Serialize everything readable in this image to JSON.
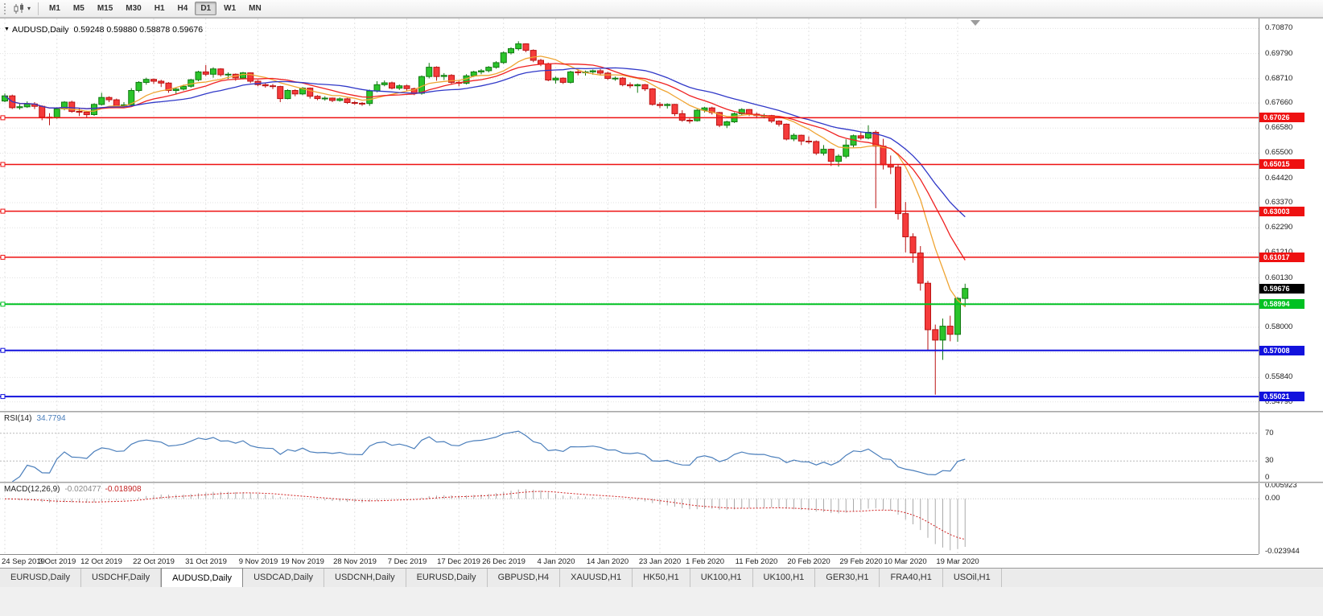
{
  "toolbar": {
    "caret": "▾",
    "periods": [
      {
        "label": "M1",
        "active": false
      },
      {
        "label": "M5",
        "active": false
      },
      {
        "label": "M15",
        "active": false
      },
      {
        "label": "M30",
        "active": false
      },
      {
        "label": "H1",
        "active": false
      },
      {
        "label": "H4",
        "active": false
      },
      {
        "label": "D1",
        "active": true
      },
      {
        "label": "W1",
        "active": false
      },
      {
        "label": "MN",
        "active": false
      }
    ]
  },
  "chart": {
    "marker": "▼",
    "title": "AUDUSD,Daily",
    "ohlc_text": "0.59248 0.59880 0.58878 0.59676"
  },
  "chart_data": {
    "type": "candlestick",
    "symbol": "AUDUSD",
    "timeframe": "Daily",
    "current_bar": {
      "open": 0.59248,
      "high": 0.5988,
      "low": 0.58878,
      "close": 0.59676
    },
    "y_range": [
      0.544,
      0.713
    ],
    "y_ticks": [
      "0.70870",
      "0.69790",
      "0.68710",
      "0.67660",
      "0.66580",
      "0.65500",
      "0.64420",
      "0.63370",
      "0.62290",
      "0.61210",
      "0.60130",
      "0.59050",
      "0.58000",
      "0.56920",
      "0.55840",
      "0.54790"
    ],
    "x_labels": [
      "24 Sep 2019",
      "3 Oct 2019",
      "12 Oct 2019",
      "22 Oct 2019",
      "31 Oct 2019",
      "9 Nov 2019",
      "19 Nov 2019",
      "28 Nov 2019",
      "7 Dec 2019",
      "17 Dec 2019",
      "26 Dec 2019",
      "4 Jan 2020",
      "14 Jan 2020",
      "23 Jan 2020",
      "1 Feb 2020",
      "11 Feb 2020",
      "20 Feb 2020",
      "29 Feb 2020",
      "10 Mar 2020",
      "19 Mar 2020"
    ],
    "colors": {
      "bull": "#2bc42b",
      "bull_border": "#117a11",
      "bear": "#f53b3b",
      "bear_border": "#ba1313",
      "grid": "#e2e2e2"
    },
    "candles": [
      [
        0.6775,
        0.6807,
        0.677,
        0.6797
      ],
      [
        0.6797,
        0.6802,
        0.674,
        0.6746
      ],
      [
        0.6746,
        0.6762,
        0.6738,
        0.675
      ],
      [
        0.675,
        0.6773,
        0.6745,
        0.6762
      ],
      [
        0.6762,
        0.677,
        0.674,
        0.6752
      ],
      [
        0.6752,
        0.6756,
        0.6692,
        0.6705
      ],
      [
        0.6705,
        0.6722,
        0.667,
        0.6703
      ],
      [
        0.6703,
        0.6748,
        0.6698,
        0.6741
      ],
      [
        0.6741,
        0.6774,
        0.6735,
        0.677
      ],
      [
        0.677,
        0.6776,
        0.6724,
        0.673
      ],
      [
        0.673,
        0.6742,
        0.671,
        0.6727
      ],
      [
        0.6727,
        0.6733,
        0.6704,
        0.6716
      ],
      [
        0.6716,
        0.6765,
        0.6711,
        0.676
      ],
      [
        0.676,
        0.681,
        0.6755,
        0.679
      ],
      [
        0.679,
        0.6795,
        0.677,
        0.678
      ],
      [
        0.678,
        0.6785,
        0.6745,
        0.6755
      ],
      [
        0.6755,
        0.677,
        0.6746,
        0.6758
      ],
      [
        0.6758,
        0.683,
        0.6752,
        0.682
      ],
      [
        0.682,
        0.686,
        0.6812,
        0.6855
      ],
      [
        0.6855,
        0.6875,
        0.6845,
        0.6868
      ],
      [
        0.6868,
        0.6872,
        0.6848,
        0.686
      ],
      [
        0.686,
        0.6866,
        0.6835,
        0.6852
      ],
      [
        0.6852,
        0.6856,
        0.681,
        0.682
      ],
      [
        0.682,
        0.6832,
        0.6805,
        0.6826
      ],
      [
        0.6826,
        0.6845,
        0.682,
        0.6838
      ],
      [
        0.6838,
        0.687,
        0.6832,
        0.6866
      ],
      [
        0.6866,
        0.6905,
        0.686,
        0.69
      ],
      [
        0.69,
        0.693,
        0.6882,
        0.689
      ],
      [
        0.689,
        0.692,
        0.6875,
        0.6913
      ],
      [
        0.6913,
        0.6916,
        0.688,
        0.6888
      ],
      [
        0.6888,
        0.6898,
        0.687,
        0.689
      ],
      [
        0.689,
        0.6893,
        0.6862,
        0.6874
      ],
      [
        0.6874,
        0.69,
        0.6868,
        0.6896
      ],
      [
        0.6896,
        0.6898,
        0.6852,
        0.686
      ],
      [
        0.686,
        0.6865,
        0.6838,
        0.6845
      ],
      [
        0.6845,
        0.6852,
        0.6832,
        0.684
      ],
      [
        0.684,
        0.6848,
        0.6826,
        0.6837
      ],
      [
        0.6837,
        0.684,
        0.677,
        0.6785
      ],
      [
        0.6785,
        0.6825,
        0.6782,
        0.682
      ],
      [
        0.682,
        0.6825,
        0.6795,
        0.6805
      ],
      [
        0.6805,
        0.6835,
        0.68,
        0.683
      ],
      [
        0.683,
        0.6833,
        0.6785,
        0.6795
      ],
      [
        0.6795,
        0.68,
        0.6778,
        0.6785
      ],
      [
        0.6785,
        0.6795,
        0.6776,
        0.6787
      ],
      [
        0.6787,
        0.679,
        0.677,
        0.6777
      ],
      [
        0.6777,
        0.679,
        0.6772,
        0.6784
      ],
      [
        0.6784,
        0.6788,
        0.6762,
        0.6768
      ],
      [
        0.6768,
        0.6775,
        0.6758,
        0.6765
      ],
      [
        0.6765,
        0.677,
        0.6754,
        0.6764
      ],
      [
        0.6764,
        0.6824,
        0.6754,
        0.6818
      ],
      [
        0.6818,
        0.686,
        0.6812,
        0.6845
      ],
      [
        0.6845,
        0.6863,
        0.6838,
        0.6853
      ],
      [
        0.6853,
        0.6858,
        0.6825,
        0.683
      ],
      [
        0.683,
        0.6846,
        0.6822,
        0.684
      ],
      [
        0.684,
        0.6845,
        0.682,
        0.6828
      ],
      [
        0.6828,
        0.6832,
        0.68,
        0.6808
      ],
      [
        0.6808,
        0.6885,
        0.6802,
        0.688
      ],
      [
        0.688,
        0.6939,
        0.6872,
        0.692
      ],
      [
        0.692,
        0.6924,
        0.6862,
        0.688
      ],
      [
        0.688,
        0.6895,
        0.6865,
        0.6885
      ],
      [
        0.6885,
        0.689,
        0.6845,
        0.6855
      ],
      [
        0.6855,
        0.6862,
        0.6838,
        0.6851
      ],
      [
        0.6851,
        0.689,
        0.6846,
        0.6883
      ],
      [
        0.6883,
        0.6905,
        0.6878,
        0.69
      ],
      [
        0.69,
        0.6912,
        0.689,
        0.6905
      ],
      [
        0.6905,
        0.6925,
        0.6898,
        0.692
      ],
      [
        0.692,
        0.6946,
        0.6914,
        0.694
      ],
      [
        0.694,
        0.6988,
        0.6934,
        0.6982
      ],
      [
        0.6982,
        0.7006,
        0.6975,
        0.7
      ],
      [
        0.7,
        0.7032,
        0.6992,
        0.7021
      ],
      [
        0.7021,
        0.7023,
        0.6985,
        0.6993
      ],
      [
        0.6993,
        0.6997,
        0.6942,
        0.695
      ],
      [
        0.695,
        0.6956,
        0.6925,
        0.6935
      ],
      [
        0.6935,
        0.694,
        0.686,
        0.6865
      ],
      [
        0.6865,
        0.688,
        0.685,
        0.6873
      ],
      [
        0.6873,
        0.6876,
        0.6848,
        0.6855
      ],
      [
        0.6855,
        0.6905,
        0.685,
        0.69
      ],
      [
        0.69,
        0.691,
        0.6885,
        0.6898
      ],
      [
        0.6898,
        0.6906,
        0.6884,
        0.69
      ],
      [
        0.69,
        0.691,
        0.6888,
        0.6905
      ],
      [
        0.6905,
        0.6912,
        0.6885,
        0.6895
      ],
      [
        0.6895,
        0.69,
        0.6865,
        0.6872
      ],
      [
        0.6872,
        0.688,
        0.6862,
        0.6873
      ],
      [
        0.6873,
        0.6878,
        0.6838,
        0.6845
      ],
      [
        0.6845,
        0.6855,
        0.683,
        0.684
      ],
      [
        0.684,
        0.685,
        0.681,
        0.6845
      ],
      [
        0.6845,
        0.6848,
        0.6818,
        0.6827
      ],
      [
        0.6827,
        0.683,
        0.6755,
        0.676
      ],
      [
        0.676,
        0.677,
        0.6744,
        0.6755
      ],
      [
        0.6755,
        0.6765,
        0.6742,
        0.676
      ],
      [
        0.676,
        0.6762,
        0.671,
        0.672
      ],
      [
        0.672,
        0.6735,
        0.6685,
        0.6692
      ],
      [
        0.6692,
        0.67,
        0.6678,
        0.669
      ],
      [
        0.669,
        0.674,
        0.6686,
        0.6735
      ],
      [
        0.6735,
        0.675,
        0.6725,
        0.6745
      ],
      [
        0.6745,
        0.675,
        0.6716,
        0.6725
      ],
      [
        0.6725,
        0.6728,
        0.6662,
        0.667
      ],
      [
        0.667,
        0.669,
        0.6658,
        0.6685
      ],
      [
        0.6685,
        0.6725,
        0.668,
        0.672
      ],
      [
        0.672,
        0.6744,
        0.6712,
        0.6738
      ],
      [
        0.6738,
        0.674,
        0.671,
        0.6718
      ],
      [
        0.6718,
        0.6725,
        0.67,
        0.6712
      ],
      [
        0.6712,
        0.672,
        0.67,
        0.6712
      ],
      [
        0.6712,
        0.6715,
        0.668,
        0.6688
      ],
      [
        0.6688,
        0.6692,
        0.6665,
        0.6675
      ],
      [
        0.6675,
        0.6678,
        0.6605,
        0.6611
      ],
      [
        0.6611,
        0.6635,
        0.6602,
        0.6627
      ],
      [
        0.6627,
        0.663,
        0.6585,
        0.6602
      ],
      [
        0.6602,
        0.6622,
        0.659,
        0.66
      ],
      [
        0.66,
        0.6605,
        0.6542,
        0.655
      ],
      [
        0.655,
        0.6585,
        0.654,
        0.6567
      ],
      [
        0.6567,
        0.657,
        0.6495,
        0.6515
      ],
      [
        0.6515,
        0.6545,
        0.6492,
        0.6537
      ],
      [
        0.6537,
        0.661,
        0.6528,
        0.6585
      ],
      [
        0.6585,
        0.663,
        0.6575,
        0.6625
      ],
      [
        0.6625,
        0.664,
        0.6608,
        0.6615
      ],
      [
        0.6615,
        0.667,
        0.661,
        0.664
      ],
      [
        0.664,
        0.6648,
        0.6313,
        0.658
      ],
      [
        0.658,
        0.6612,
        0.648,
        0.65
      ],
      [
        0.65,
        0.654,
        0.646,
        0.649
      ],
      [
        0.649,
        0.65,
        0.6264,
        0.629
      ],
      [
        0.629,
        0.634,
        0.6123,
        0.619
      ],
      [
        0.619,
        0.6205,
        0.6078,
        0.612
      ],
      [
        0.612,
        0.615,
        0.5958,
        0.599
      ],
      [
        0.599,
        0.6,
        0.57,
        0.579
      ],
      [
        0.579,
        0.5812,
        0.551,
        0.5745
      ],
      [
        0.5745,
        0.5838,
        0.566,
        0.5805
      ],
      [
        0.5805,
        0.585,
        0.574,
        0.577
      ],
      [
        0.577,
        0.593,
        0.5738,
        0.5925
      ],
      [
        0.59248,
        0.5988,
        0.58878,
        0.59676
      ]
    ],
    "moving_averages": [
      {
        "name": "ma-fast-line",
        "period": 8,
        "color": "#efa432"
      },
      {
        "name": "ma-mid-line",
        "period": 13,
        "color": "#ef2121"
      },
      {
        "name": "ma-slow-line",
        "period": 21,
        "color": "#3038c8"
      }
    ],
    "hlines": [
      {
        "value": 0.67026,
        "label": "0.67026",
        "color": "#ee1111",
        "width": 1.5
      },
      {
        "value": 0.65015,
        "label": "0.65015",
        "color": "#ee1111",
        "width": 1.5
      },
      {
        "value": 0.63003,
        "label": "0.63003",
        "color": "#ee1111",
        "width": 1.5
      },
      {
        "value": 0.61017,
        "label": "0.61017",
        "color": "#ee1111",
        "width": 1.5
      },
      {
        "value": 0.58994,
        "label": "0.58994",
        "color": "#00c122",
        "width": 2
      },
      {
        "value": 0.57008,
        "label": "0.57008",
        "color": "#1212dd",
        "width": 2
      },
      {
        "value": 0.55021,
        "label": "0.55021",
        "color": "#1212dd",
        "width": 2
      }
    ],
    "price_marker": {
      "value": 0.59676,
      "label": "0.59676",
      "color": "#000000"
    },
    "indicators": {
      "rsi": {
        "label": "RSI(14)",
        "value": "34.7794",
        "period": 14,
        "levels": [
          70,
          30
        ],
        "axis": [
          "70",
          "30",
          "0"
        ],
        "color": "#4a7ebb"
      },
      "macd": {
        "label": "MACD(12,26,9)",
        "value_main": "-0.020477",
        "value_signal": "-0.018908",
        "fast": 12,
        "slow": 26,
        "signal_period": 9,
        "axis": [
          "0.005923",
          "0.00",
          "-0.023944"
        ],
        "hist_color": "#aaaaaa",
        "signal_color": "#d02020"
      }
    }
  },
  "tabs": [
    {
      "label": "EURUSD,Daily",
      "active": false
    },
    {
      "label": "USDCHF,Daily",
      "active": false
    },
    {
      "label": "AUDUSD,Daily",
      "active": true
    },
    {
      "label": "USDCAD,Daily",
      "active": false
    },
    {
      "label": "USDCNH,Daily",
      "active": false
    },
    {
      "label": "EURUSD,Daily",
      "active": false
    },
    {
      "label": "GBPUSD,H4",
      "active": false
    },
    {
      "label": "XAUUSD,H1",
      "active": false
    },
    {
      "label": "HK50,H1",
      "active": false
    },
    {
      "label": "UK100,H1",
      "active": false
    },
    {
      "label": "UK100,H1",
      "active": false
    },
    {
      "label": "GER30,H1",
      "active": false
    },
    {
      "label": "FRA40,H1",
      "active": false
    },
    {
      "label": "USOil,H1",
      "active": false
    }
  ]
}
